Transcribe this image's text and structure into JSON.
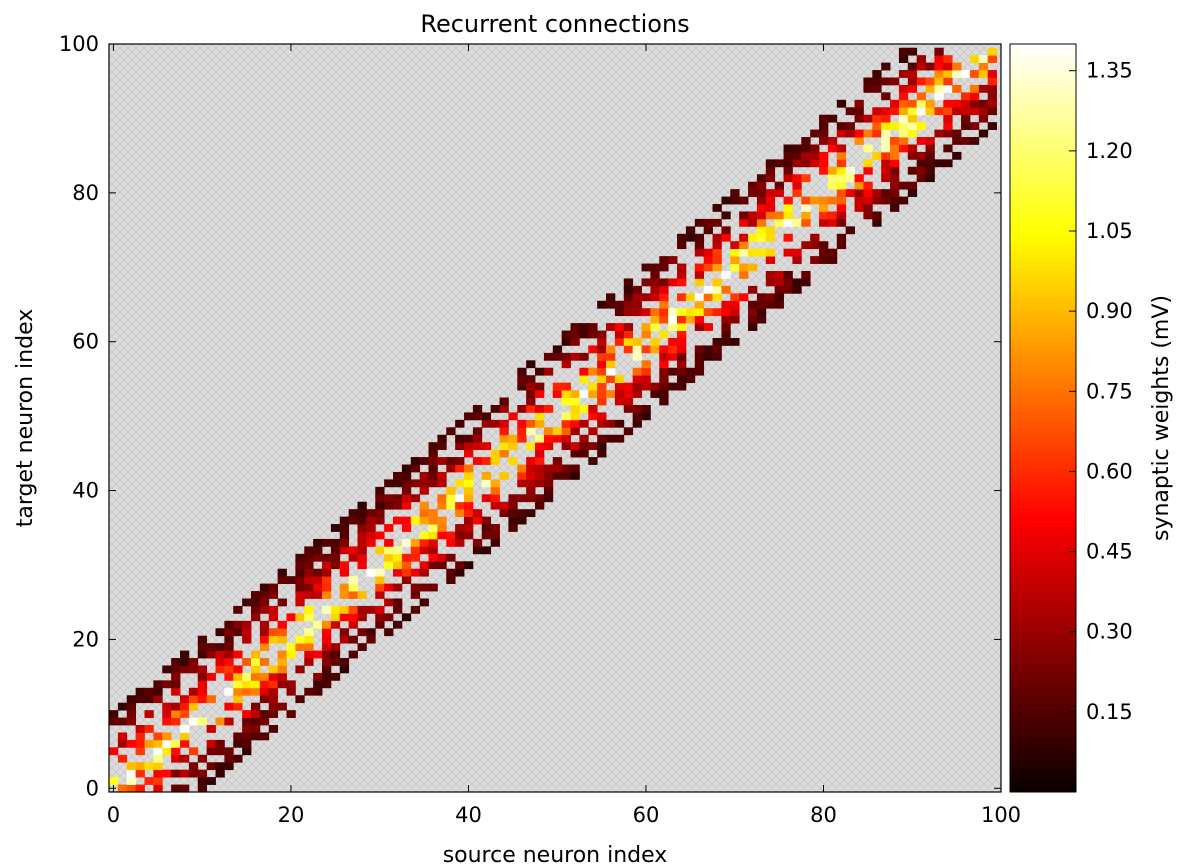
{
  "chart_data": {
    "type": "heatmap",
    "title": "Recurrent connections",
    "xlabel": "source neuron index",
    "ylabel": "target neuron index",
    "xlim": [
      -0.5,
      100
    ],
    "ylim": [
      -0.5,
      100
    ],
    "xticks": [
      0,
      20,
      40,
      60,
      80,
      100
    ],
    "yticks": [
      0,
      20,
      40,
      60,
      80,
      100
    ],
    "grid": false,
    "background": "light gray cross-hatch (no connection)",
    "colormap": "hot",
    "colorbar": {
      "label": "synaptic weights (mV)",
      "range": [
        0,
        1.4
      ],
      "ticks": [
        0.15,
        0.3,
        0.45,
        0.6,
        0.75,
        0.9,
        1.05,
        1.2,
        1.35
      ],
      "tick_labels": [
        "0.15",
        "0.30",
        "0.45",
        "0.60",
        "0.75",
        "0.90",
        "1.05",
        "1.20",
        "1.35"
      ]
    },
    "structure": {
      "n_source": 100,
      "n_target": 100,
      "band_center": "target = source",
      "band_halfwidth_neurons": 10,
      "peak_weight_on_diagonal": 1.35,
      "weight_decay_with_distance": "strong near diagonal (yellow/white), weak at band edges (dark red/black)",
      "connection_density": 0.6
    }
  }
}
